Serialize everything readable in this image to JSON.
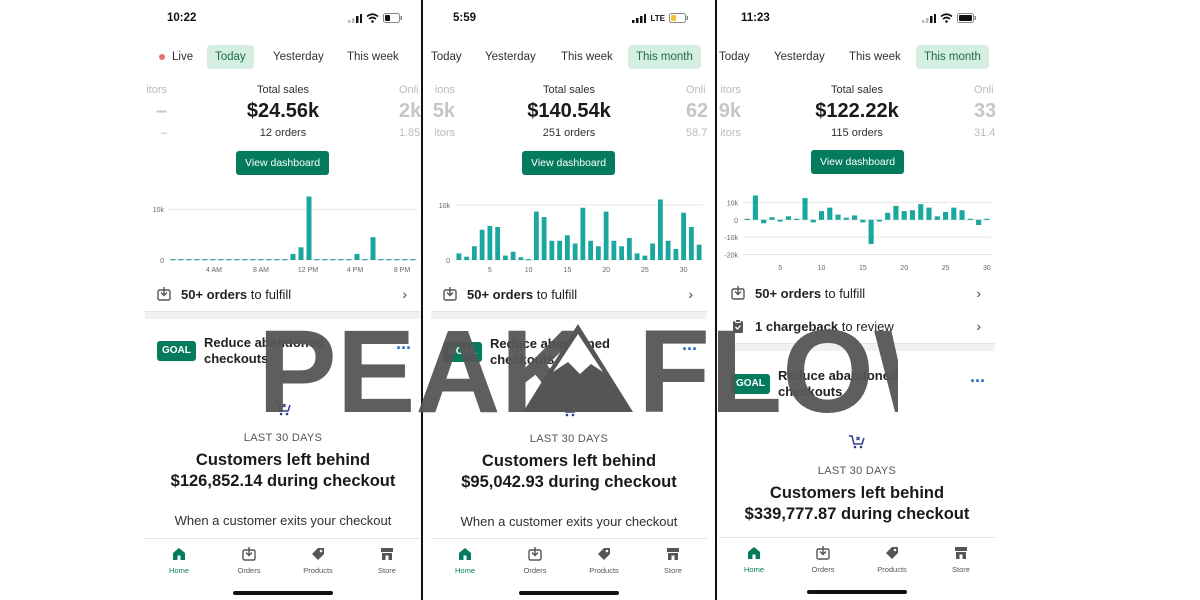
{
  "colors": {
    "accent": "#047b5d",
    "bar": "#1aa7a0",
    "active_tab_bg": "#d5eee2",
    "link": "#2c6ecb"
  },
  "watermark": {
    "left": "PEAK",
    "right": "FLOW"
  },
  "nav": {
    "home": "Home",
    "orders": "Orders",
    "products": "Products",
    "store": "Store"
  },
  "common": {
    "view_dashboard": "View dashboard",
    "fulfill_bold": "50+ orders",
    "fulfill_rest": " to fulfill",
    "goal_badge": "GOAL",
    "goal_title": "Reduce abandoned checkouts",
    "last_30_days": "LAST 30 DAYS",
    "headline_line1": "Customers left behind",
    "body_text": "When a customer exits your checkout"
  },
  "phones": [
    {
      "time": "10:22",
      "tabs": {
        "live": "Live",
        "today": "Today",
        "yesterday": "Yesterday",
        "this_week": "This week"
      },
      "active_tab": "Today",
      "left_metric": {
        "label": "itors",
        "value": "–",
        "sub": "–"
      },
      "total_sales": {
        "label": "Total sales",
        "value": "$24.56k",
        "orders": "12 orders"
      },
      "right_metric": {
        "label": "Onli",
        "value": "2k",
        "sub": "1.85"
      },
      "abandoned_amount": "$126,852.14 during checkout",
      "chart": {
        "y_ticks": [
          "10k",
          "0"
        ],
        "x_ticks": [
          "4 AM",
          "8 AM",
          "12 PM",
          "4 PM",
          "8 PM"
        ],
        "values": [
          0,
          0,
          0,
          0,
          0,
          0,
          0,
          0,
          0,
          0,
          0,
          0,
          0,
          0,
          0,
          1200,
          2500,
          12500,
          0,
          0,
          0,
          0,
          0,
          1200,
          0,
          4500,
          0,
          0,
          0,
          0,
          0
        ],
        "ymax": 13000,
        "ymin": 0
      }
    },
    {
      "time": "5:59",
      "tabs": {
        "today": "Today",
        "yesterday": "Yesterday",
        "this_week": "This week",
        "this_month": "This month"
      },
      "active_tab": "This month",
      "left_metric": {
        "label": "ions",
        "value": "5k",
        "sub": "itors"
      },
      "total_sales": {
        "label": "Total sales",
        "value": "$140.54k",
        "orders": "251 orders"
      },
      "right_metric": {
        "label": "Onli",
        "value": "62",
        "sub": "58.7"
      },
      "abandoned_amount": "$95,042.93 during checkout",
      "chart": {
        "y_ticks": [
          "10k",
          "0"
        ],
        "x_ticks": [
          "5",
          "10",
          "15",
          "20",
          "25",
          "30"
        ],
        "values": [
          1200,
          600,
          2500,
          5500,
          6200,
          6000,
          800,
          1500,
          500,
          0,
          8800,
          7800,
          3500,
          3500,
          4500,
          3000,
          9500,
          3500,
          2500,
          8800,
          3500,
          2500,
          4000,
          1200,
          800,
          3000,
          11000,
          3500,
          2000,
          8600,
          6000,
          2800
        ],
        "ymax": 12000,
        "ymin": 0
      }
    },
    {
      "time": "11:23",
      "tabs": {
        "today": "Today",
        "yesterday": "Yesterday",
        "this_week": "This week",
        "this_month": "This month"
      },
      "active_tab": "This month",
      "left_metric": {
        "label": "itors",
        "value": "9k",
        "sub": "itors"
      },
      "total_sales": {
        "label": "Total sales",
        "value": "$122.22k",
        "orders": "115 orders"
      },
      "right_metric": {
        "label": "Onli",
        "value": "33",
        "sub": "31.4"
      },
      "chargeback": {
        "bold": "1 chargeback",
        "rest": " to review"
      },
      "abandoned_amount": "$339,777.87 during checkout",
      "chart": {
        "y_ticks": [
          "10k",
          "0",
          "-10k",
          "-20k"
        ],
        "x_ticks": [
          "5",
          "10",
          "15",
          "20",
          "25",
          "30"
        ],
        "values": [
          0,
          14000,
          -2000,
          1500,
          -1000,
          2000,
          0,
          12500,
          -1500,
          5000,
          7000,
          3000,
          1200,
          2500,
          -1500,
          -14000,
          -1000,
          4000,
          8000,
          5000,
          5500,
          9000,
          7000,
          2000,
          4500,
          7000,
          5500,
          0,
          -3000,
          0
        ],
        "ymax": 16000,
        "ymin": -22000
      }
    }
  ]
}
